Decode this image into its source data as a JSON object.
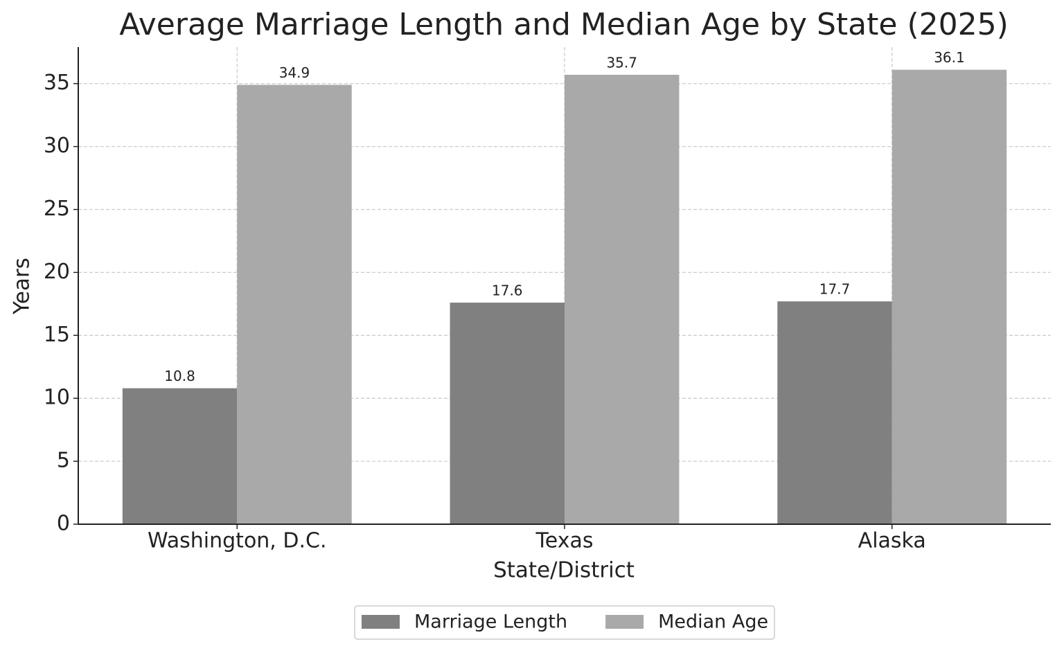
{
  "chart_data": {
    "type": "bar",
    "title": "Average Marriage Length and Median Age by State (2025)",
    "x_label": "State/District",
    "y_label": "Years",
    "categories": [
      "Washington, D.C.",
      "Texas",
      "Alaska"
    ],
    "series": [
      {
        "name": "Marriage Length",
        "color": "#808080",
        "values": [
          10.8,
          17.6,
          17.7
        ]
      },
      {
        "name": "Median Age",
        "color": "#a9a9a9",
        "values": [
          34.9,
          35.7,
          36.1
        ]
      }
    ],
    "ylim": [
      0,
      37.9
    ],
    "yticks": [
      0,
      5,
      10,
      15,
      20,
      25,
      30,
      35
    ],
    "grid": true,
    "legend": "bottom"
  }
}
